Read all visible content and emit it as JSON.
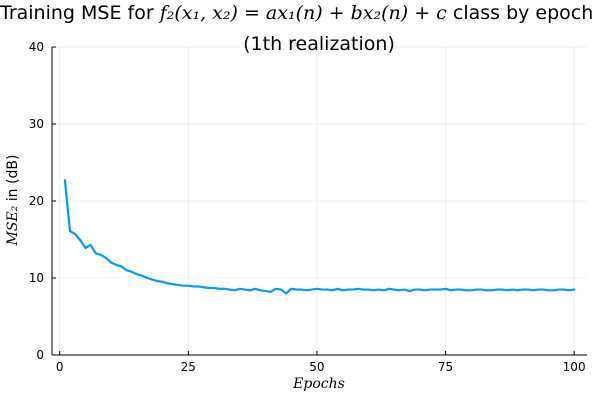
{
  "chart_data": {
    "type": "line",
    "title_prefix": "Training MSE for ",
    "title_formula": "f₂(x₁, x₂) = ax₁(n) + bx₂(n) + c",
    "title_suffix": " class by epoch",
    "subtitle": "(1th realization)",
    "xlabel": "Epochs",
    "ylabel_math": "MSE₂",
    "ylabel_text": " in (dB)",
    "xlim": [
      -1.5,
      102.5
    ],
    "ylim": [
      0,
      40
    ],
    "xticks": [
      0,
      25,
      50,
      75,
      100
    ],
    "yticks": [
      0,
      10,
      20,
      30,
      40
    ],
    "grid": true,
    "line_color": "#009AFA",
    "series": [
      {
        "x": [
          1,
          2,
          3,
          4,
          5,
          6,
          7,
          8,
          9,
          10,
          11,
          12,
          13,
          14,
          15,
          16,
          17,
          18,
          19,
          20,
          21,
          22,
          23,
          24,
          25,
          26,
          27,
          28,
          29,
          30,
          31,
          32,
          33,
          34,
          35,
          36,
          37,
          38,
          39,
          40,
          41,
          42,
          43,
          44,
          45,
          46,
          47,
          48,
          49,
          50,
          51,
          52,
          53,
          54,
          55,
          56,
          57,
          58,
          59,
          60,
          61,
          62,
          63,
          64,
          65,
          66,
          67,
          68,
          69,
          70,
          71,
          72,
          73,
          74,
          75,
          76,
          77,
          78,
          79,
          80,
          81,
          82,
          83,
          84,
          85,
          86,
          87,
          88,
          89,
          90,
          91,
          92,
          93,
          94,
          95,
          96,
          97,
          98,
          99,
          100
        ],
        "values": [
          22.7,
          16.1,
          15.7,
          14.9,
          13.9,
          14.3,
          13.2,
          13.0,
          12.6,
          12.0,
          11.7,
          11.5,
          11.0,
          10.8,
          10.5,
          10.3,
          10.0,
          9.8,
          9.6,
          9.5,
          9.3,
          9.2,
          9.1,
          9.0,
          9.0,
          8.9,
          8.9,
          8.8,
          8.7,
          8.7,
          8.6,
          8.6,
          8.5,
          8.4,
          8.6,
          8.5,
          8.4,
          8.6,
          8.4,
          8.3,
          8.2,
          8.6,
          8.5,
          8.0,
          8.6,
          8.5,
          8.5,
          8.4,
          8.5,
          8.6,
          8.5,
          8.5,
          8.4,
          8.6,
          8.4,
          8.5,
          8.5,
          8.6,
          8.5,
          8.5,
          8.4,
          8.5,
          8.4,
          8.6,
          8.5,
          8.4,
          8.5,
          8.3,
          8.5,
          8.5,
          8.4,
          8.5,
          8.5,
          8.5,
          8.6,
          8.4,
          8.5,
          8.5,
          8.4,
          8.4,
          8.5,
          8.5,
          8.4,
          8.4,
          8.5,
          8.5,
          8.4,
          8.5,
          8.4,
          8.5,
          8.5,
          8.4,
          8.5,
          8.5,
          8.4,
          8.4,
          8.5,
          8.5,
          8.4,
          8.5
        ]
      }
    ]
  }
}
